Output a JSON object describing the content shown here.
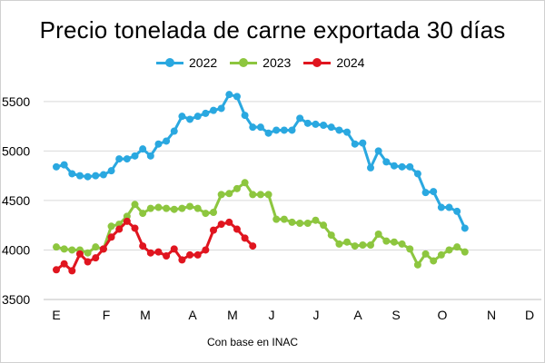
{
  "chart_data": {
    "type": "line",
    "title": "Precio tonelada de carne exportada 30 días",
    "xlabel": "",
    "ylabel": "",
    "source": "Con base en INAC",
    "month_labels": [
      "E",
      "F",
      "M",
      "A",
      "M",
      "J",
      "J",
      "A",
      "S",
      "O",
      "N",
      "D"
    ],
    "ylim": [
      3500,
      5700
    ],
    "yticks": [
      3500,
      4000,
      4500,
      5000,
      5500
    ],
    "grid": "horizontal",
    "legend_position": "top",
    "series": [
      {
        "name": "2022",
        "color": "#2aa8e0",
        "values": [
          4840,
          4860,
          4770,
          4750,
          4740,
          4750,
          4760,
          4800,
          4920,
          4920,
          4950,
          5020,
          4950,
          5070,
          5100,
          5200,
          5350,
          5320,
          5350,
          5380,
          5410,
          5430,
          5570,
          5550,
          5360,
          5240,
          5240,
          5180,
          5210,
          5210,
          5210,
          5330,
          5280,
          5270,
          5260,
          5240,
          5210,
          5190,
          5070,
          5080,
          4830,
          5000,
          4890,
          4850,
          4840,
          4840,
          4770,
          4580,
          4590,
          4430,
          4430,
          4390,
          4220
        ]
      },
      {
        "name": "2023",
        "color": "#8dc63f",
        "values": [
          4030,
          4010,
          4000,
          4000,
          3970,
          4030,
          4010,
          4240,
          4260,
          4340,
          4460,
          4370,
          4420,
          4430,
          4420,
          4410,
          4420,
          4440,
          4420,
          4370,
          4380,
          4560,
          4570,
          4620,
          4680,
          4560,
          4560,
          4560,
          4310,
          4310,
          4280,
          4270,
          4270,
          4300,
          4250,
          4150,
          4060,
          4080,
          4040,
          4050,
          4050,
          4160,
          4090,
          4080,
          4060,
          4010,
          3850,
          3960,
          3890,
          3950,
          4000,
          4030,
          3980
        ]
      },
      {
        "name": "2024",
        "color": "#e0151f",
        "values": [
          3800,
          3860,
          3790,
          3960,
          3880,
          3920,
          4010,
          4130,
          4210,
          4290,
          4220,
          4040,
          3970,
          3980,
          3940,
          4010,
          3900,
          3950,
          3950,
          4000,
          4200,
          4260,
          4280,
          4210,
          4120,
          4040
        ]
      }
    ]
  }
}
